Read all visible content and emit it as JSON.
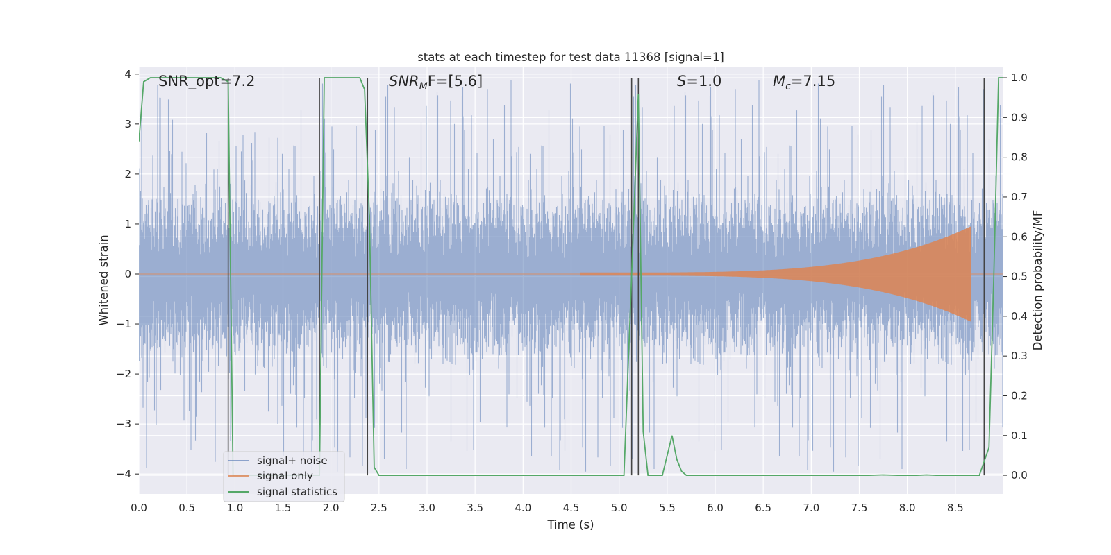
{
  "chart_data": {
    "type": "line",
    "title": "stats at each timestep for test data 11368 [signal=1]",
    "xlabel": "Time (s)",
    "ylabel": "Whitened strain",
    "y2label": "Detection probability/MF",
    "xlim": [
      0.0,
      9.0
    ],
    "ylim": [
      -4.4,
      4.15
    ],
    "y2lim": [
      -0.047,
      1.028
    ],
    "xticks": [
      0.0,
      0.5,
      1.0,
      1.5,
      2.0,
      2.5,
      3.0,
      3.5,
      4.0,
      4.5,
      5.0,
      5.5,
      6.0,
      6.5,
      7.0,
      7.5,
      8.0,
      8.5
    ],
    "xtick_labels": [
      "0.0",
      "0.5",
      "1.0",
      "1.5",
      "2.0",
      "2.5",
      "3.0",
      "3.5",
      "4.0",
      "4.5",
      "5.0",
      "5.5",
      "6.0",
      "6.5",
      "7.0",
      "7.5",
      "8.0",
      "8.5"
    ],
    "yticks": [
      4,
      3,
      2,
      1,
      0,
      -1,
      -2,
      -3,
      -4
    ],
    "ytick_labels": [
      "4",
      "3",
      "2",
      "1",
      "0",
      "−1",
      "−2",
      "−3",
      "−4"
    ],
    "y2ticks": [
      1.0,
      0.9,
      0.8,
      0.7,
      0.6,
      0.5,
      0.4,
      0.3,
      0.2,
      0.1,
      0.0
    ],
    "y2tick_labels": [
      "1.0",
      "0.9",
      "0.8",
      "0.7",
      "0.6",
      "0.5",
      "0.4",
      "0.3",
      "0.2",
      "0.1",
      "0.0"
    ],
    "grid": true,
    "legend_position": "lower-left",
    "annotations": {
      "snr_opt": "SNR_opt=7.2",
      "snr_mf_base": "SNR",
      "snr_mf_sub": "M",
      "snr_mf_rest": "F=[5.6]",
      "s_var": "S",
      "s_rest": "=1.0",
      "mc_base": "M",
      "mc_sub": "c",
      "mc_rest": "=7.15"
    },
    "series": [
      {
        "name": "signal+ noise",
        "color": "#4c72b0",
        "kind": "noise",
        "t_start": 0.0,
        "t_end": 9.0,
        "typical_envelope": [
          -2.2,
          2.2
        ],
        "extreme_range": [
          -4.0,
          3.9
        ]
      },
      {
        "name": "signal only",
        "color": "#dd8452",
        "kind": "chirp",
        "t_onset": 4.6,
        "t_merger": 8.66,
        "amplitude_start": 0.03,
        "amplitude_peak": 0.95,
        "amplitude_min": -1.0
      },
      {
        "name": "signal statistics",
        "color": "#55a868",
        "axis": "right",
        "x": [
          0.0,
          0.05,
          0.12,
          0.2,
          0.3,
          0.5,
          0.7,
          0.85,
          0.93,
          0.98,
          1.05,
          1.6,
          1.8,
          1.88,
          1.93,
          2.0,
          2.1,
          2.3,
          2.35,
          2.4,
          2.45,
          2.5,
          3.0,
          4.0,
          5.0,
          5.05,
          5.13,
          5.2,
          5.25,
          5.3,
          5.35,
          5.45,
          5.55,
          5.6,
          5.65,
          5.7,
          6.0,
          7.0,
          7.6,
          7.75,
          7.9,
          8.1,
          8.2,
          8.3,
          8.5,
          8.75,
          8.85,
          8.9,
          8.95,
          9.0
        ],
        "y": [
          0.84,
          0.99,
          1.0,
          1.0,
          1.0,
          1.0,
          1.0,
          1.0,
          0.99,
          0.0,
          0.0,
          0.0,
          0.0,
          0.0,
          1.0,
          1.0,
          1.0,
          1.0,
          0.97,
          0.65,
          0.02,
          0.0,
          0.0,
          0.0,
          0.0,
          0.0,
          0.5,
          0.96,
          0.11,
          0.0,
          0.0,
          0.0,
          0.1,
          0.04,
          0.01,
          0.0,
          0.0,
          0.0,
          0.0,
          0.001,
          0.0,
          0.0,
          0.001,
          0.0,
          0.0,
          0.0,
          0.07,
          0.5,
          1.0,
          1.0
        ]
      }
    ],
    "detection_markers": {
      "color": "#444444",
      "x": [
        0.93,
        1.88,
        2.38,
        5.13,
        5.2,
        8.8
      ],
      "y_range": [
        0.0,
        1.0
      ]
    }
  }
}
